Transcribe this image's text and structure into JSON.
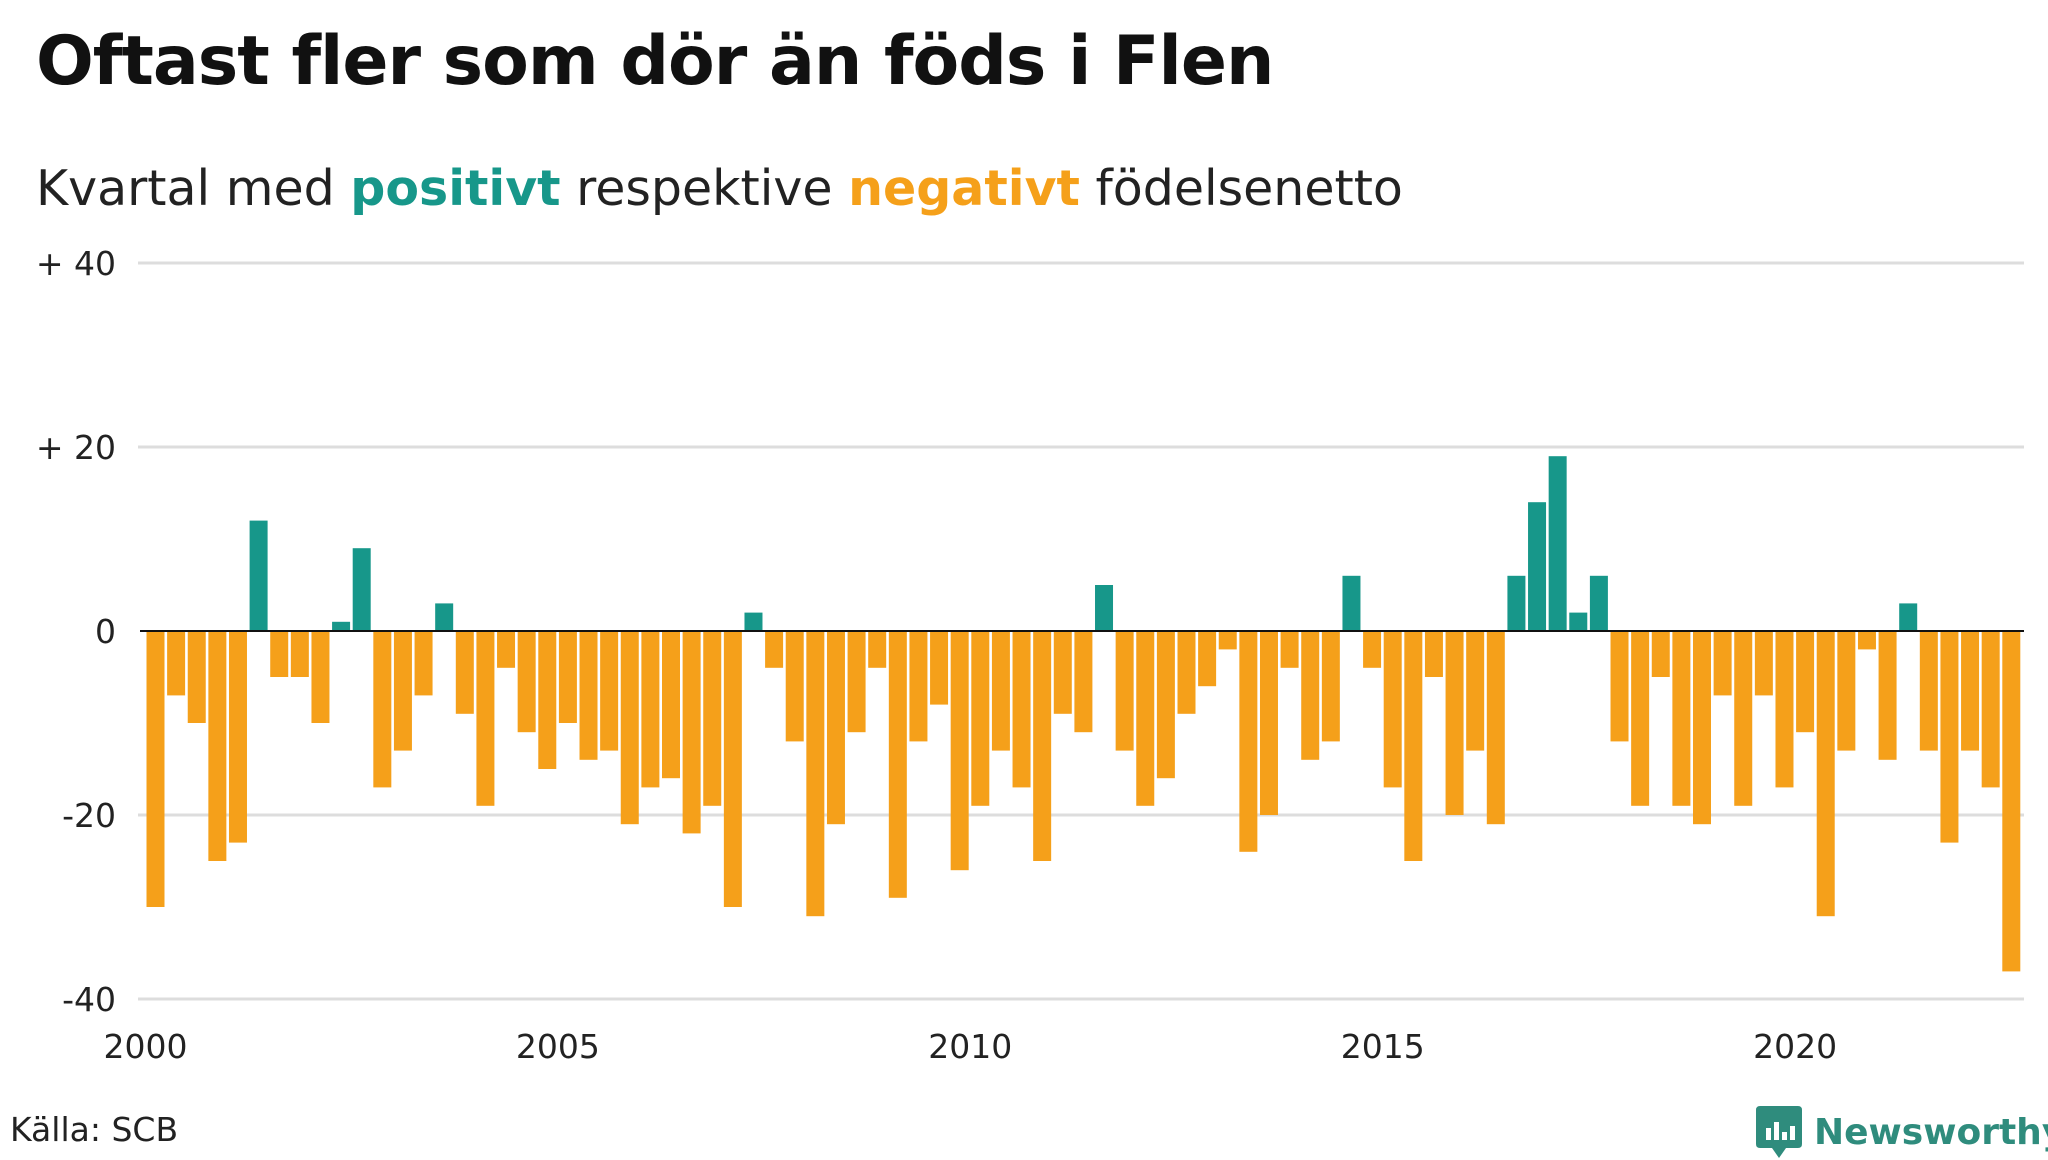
{
  "title": "Oftast fler som dör än föds i Flen",
  "subtitle": {
    "prefix": "Kvartal med ",
    "positive": "positivt",
    "middle": " respektive ",
    "negative": "negativt",
    "suffix": " födelsenetto"
  },
  "source": "Källa: SCB",
  "brand": "Newsworthy",
  "colors": {
    "positive": "#17978a",
    "negative": "#f5a01a",
    "grid": "#dddddd",
    "axis": "#111111",
    "brand": "#2f8c7d"
  },
  "chart_data": {
    "type": "bar",
    "x_start": "2000 Q1",
    "x_ticks": [
      "2000",
      "2005",
      "2010",
      "2015",
      "2020"
    ],
    "y_ticks": [
      "+ 40",
      "+ 20",
      "0",
      "-20",
      "-40"
    ],
    "y_tick_values": [
      40,
      20,
      0,
      -20,
      -40
    ],
    "ylim": [
      -40,
      40
    ],
    "grid": true,
    "values": [
      -30,
      -7,
      -10,
      -25,
      -23,
      12,
      -5,
      -5,
      -10,
      1,
      9,
      -17,
      -13,
      -7,
      3,
      -9,
      -19,
      -4,
      -11,
      -15,
      -10,
      -14,
      -13,
      -21,
      -17,
      -16,
      -22,
      -19,
      -30,
      2,
      -4,
      -12,
      -31,
      -21,
      -11,
      -4,
      -29,
      -12,
      -8,
      -26,
      -19,
      -13,
      -17,
      -25,
      -9,
      -11,
      5,
      -13,
      -19,
      -16,
      -9,
      -6,
      -2,
      -24,
      -20,
      -4,
      -14,
      -12,
      6,
      -4,
      -17,
      -25,
      -5,
      -20,
      -13,
      -21,
      6,
      14,
      19,
      2,
      6,
      -12,
      -19,
      -5,
      -19,
      -21,
      -7,
      -19,
      -7,
      -17,
      -11,
      -31,
      -13,
      -2,
      -14,
      3,
      -13,
      -23,
      -13,
      -17,
      -37
    ]
  }
}
